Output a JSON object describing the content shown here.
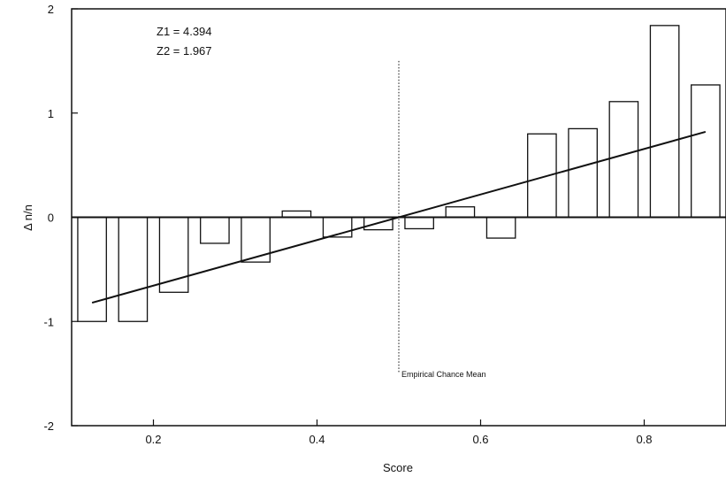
{
  "chart_data": {
    "type": "bar",
    "title": "",
    "xlabel": "Score",
    "ylabel": "Δ n/n",
    "xlim": [
      0.1,
      0.9
    ],
    "ylim": [
      -2,
      2
    ],
    "x_ticks": [
      0.2,
      0.4,
      0.6,
      0.8
    ],
    "x_tick_labels": [
      "0.2",
      "0.4",
      "0.6",
      "0.8"
    ],
    "y_ticks": [
      -2,
      -1,
      0,
      1,
      2
    ],
    "y_tick_labels": [
      "-2",
      "-1",
      "0",
      "1",
      "2"
    ],
    "grid": false,
    "series": [
      {
        "x": [
          0.125,
          0.175,
          0.225,
          0.275,
          0.325,
          0.375,
          0.425,
          0.475,
          0.525,
          0.575,
          0.625,
          0.675,
          0.725,
          0.775,
          0.825,
          0.875
        ],
        "values": [
          -1.0,
          -1.0,
          -0.72,
          -0.25,
          -0.43,
          0.06,
          -0.19,
          -0.12,
          -0.11,
          0.1,
          -0.2,
          0.8,
          0.85,
          1.11,
          1.84,
          1.27
        ]
      }
    ],
    "fit_line": {
      "x": [
        0.125,
        0.875
      ],
      "y": [
        -0.82,
        0.82
      ]
    },
    "reference_line": {
      "x": 0.5,
      "y_range": [
        -1.5,
        1.5
      ],
      "label": "Empirical Chance Mean"
    },
    "annotations": [
      "Z1 = 4.394",
      "Z2 = 1.967"
    ]
  }
}
